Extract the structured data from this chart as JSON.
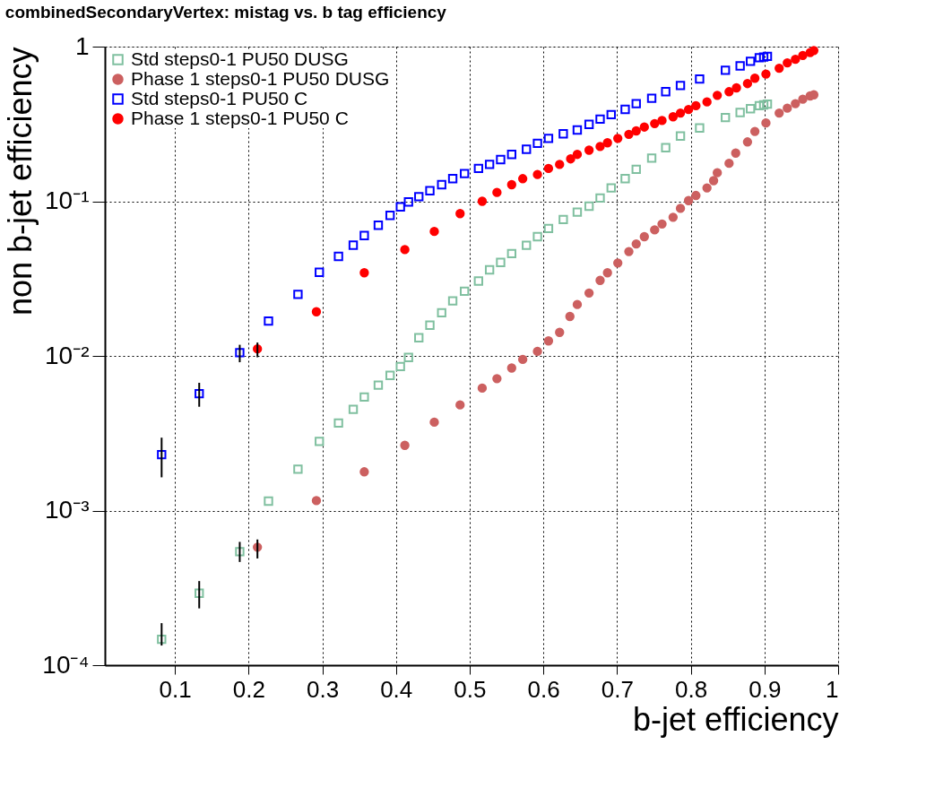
{
  "chart_data": {
    "type": "scatter",
    "title": "combinedSecondaryVertex: mistag vs. b tag efficiency",
    "xlabel": "b-jet efficiency",
    "ylabel": "non b-jet efficiency",
    "xlim": [
      0.005,
      1
    ],
    "ylim": [
      0.0001,
      1
    ],
    "log": "y",
    "grid": true,
    "legend": "top left",
    "xticks": [
      0.1,
      0.2,
      0.3,
      0.4,
      0.5,
      0.6,
      0.7,
      0.8,
      0.9,
      1
    ],
    "yticks": [
      {
        "value": 0.0001,
        "label": "10⁻⁴"
      },
      {
        "value": 0.001,
        "label": "10⁻³"
      },
      {
        "value": 0.01,
        "label": "10⁻²"
      },
      {
        "value": 0.1,
        "label": "10⁻¹"
      },
      1
    ],
    "series": [
      {
        "name": "Std steps0-1 PU50 DUSG",
        "color": "#80c0a0",
        "marker": "square",
        "x": [
          0.082,
          0.133,
          0.188,
          0.227,
          0.267,
          0.296,
          0.322,
          0.342,
          0.357,
          0.376,
          0.392,
          0.406,
          0.417,
          0.431,
          0.446,
          0.462,
          0.477,
          0.493,
          0.512,
          0.527,
          0.542,
          0.557,
          0.577,
          0.592,
          0.607,
          0.627,
          0.646,
          0.662,
          0.677,
          0.692,
          0.711,
          0.726,
          0.747,
          0.766,
          0.786,
          0.812,
          0.847,
          0.867,
          0.881,
          0.893,
          0.899,
          0.904
        ],
        "values": [
          0.000147,
          0.000292,
          0.000542,
          0.00115,
          0.00185,
          0.0028,
          0.00368,
          0.00451,
          0.00542,
          0.00647,
          0.00748,
          0.00853,
          0.00977,
          0.0131,
          0.0158,
          0.019,
          0.0227,
          0.0262,
          0.0305,
          0.036,
          0.0402,
          0.0459,
          0.0519,
          0.059,
          0.0667,
          0.0762,
          0.085,
          0.0929,
          0.105,
          0.122,
          0.14,
          0.161,
          0.19,
          0.222,
          0.264,
          0.298,
          0.348,
          0.375,
          0.397,
          0.415,
          0.42,
          0.425
        ],
        "errors": [
          [
            0.000134,
            0.000187
          ],
          [
            0.000233,
            0.00035
          ],
          [
            0.000465,
            0.000627
          ],
          null,
          null,
          null,
          null,
          null,
          null,
          null,
          null,
          null,
          null,
          null,
          null,
          null,
          null,
          null,
          null,
          null,
          null,
          null,
          null,
          null,
          null,
          null,
          null,
          null,
          null,
          null,
          null,
          null,
          null,
          null,
          null,
          null,
          null,
          null,
          null,
          null,
          null,
          null
        ]
      },
      {
        "name": "Phase 1 steps0-1 PU50 DUSG",
        "color": "#cc6060",
        "marker": "circle",
        "x": [
          0.212,
          0.292,
          0.357,
          0.412,
          0.452,
          0.487,
          0.517,
          0.537,
          0.557,
          0.572,
          0.592,
          0.607,
          0.622,
          0.636,
          0.646,
          0.662,
          0.677,
          0.687,
          0.701,
          0.716,
          0.726,
          0.737,
          0.751,
          0.761,
          0.776,
          0.786,
          0.797,
          0.807,
          0.822,
          0.831,
          0.836,
          0.852,
          0.861,
          0.877,
          0.887,
          0.902,
          0.92,
          0.931,
          0.942,
          0.952,
          0.962,
          0.967
        ],
        "values": [
          0.00058,
          0.00116,
          0.00178,
          0.00264,
          0.00373,
          0.00482,
          0.00619,
          0.00713,
          0.00835,
          0.00949,
          0.0107,
          0.0125,
          0.0142,
          0.018,
          0.0215,
          0.0255,
          0.0308,
          0.0345,
          0.0399,
          0.0473,
          0.053,
          0.059,
          0.0653,
          0.0713,
          0.0788,
          0.09,
          0.101,
          0.109,
          0.122,
          0.136,
          0.153,
          0.176,
          0.205,
          0.242,
          0.283,
          0.321,
          0.372,
          0.4,
          0.428,
          0.457,
          0.48,
          0.488
        ],
        "errors": [
          [
            0.00049,
            0.00065
          ],
          null,
          null,
          null,
          null,
          null,
          null,
          null,
          null,
          null,
          null,
          null,
          null,
          null,
          null,
          null,
          null,
          null,
          null,
          null,
          null,
          null,
          null,
          null,
          null,
          null,
          null,
          null,
          null,
          null,
          null,
          null,
          null,
          null,
          null,
          null,
          null,
          null,
          null,
          null,
          null,
          null
        ]
      },
      {
        "name": "Std steps0-1 PU50 C",
        "color": "#0000ff",
        "marker": "square",
        "x": [
          0.082,
          0.133,
          0.188,
          0.227,
          0.267,
          0.296,
          0.322,
          0.342,
          0.357,
          0.376,
          0.392,
          0.406,
          0.417,
          0.431,
          0.446,
          0.462,
          0.477,
          0.493,
          0.512,
          0.527,
          0.542,
          0.557,
          0.577,
          0.592,
          0.607,
          0.627,
          0.646,
          0.662,
          0.677,
          0.692,
          0.711,
          0.726,
          0.747,
          0.766,
          0.786,
          0.812,
          0.847,
          0.867,
          0.881,
          0.893,
          0.899,
          0.904
        ],
        "values": [
          0.0023,
          0.0057,
          0.0105,
          0.0168,
          0.025,
          0.0347,
          0.044,
          0.052,
          0.06,
          0.07,
          0.081,
          0.092,
          0.099,
          0.107,
          0.117,
          0.128,
          0.14,
          0.151,
          0.163,
          0.173,
          0.186,
          0.201,
          0.217,
          0.237,
          0.255,
          0.273,
          0.289,
          0.314,
          0.34,
          0.363,
          0.393,
          0.428,
          0.463,
          0.511,
          0.56,
          0.617,
          0.703,
          0.751,
          0.803,
          0.847,
          0.857,
          0.865
        ],
        "errors": [
          [
            0.00164,
            0.00296
          ],
          [
            0.00469,
            0.0067
          ],
          [
            0.0091,
            0.0118
          ],
          null,
          null,
          null,
          null,
          null,
          null,
          null,
          null,
          null,
          null,
          null,
          null,
          null,
          null,
          null,
          null,
          null,
          null,
          null,
          null,
          null,
          null,
          null,
          null,
          null,
          null,
          null,
          null,
          null,
          null,
          null,
          null,
          null,
          null,
          null,
          null,
          null,
          null,
          null
        ]
      },
      {
        "name": "Phase 1 steps0-1 PU50 C",
        "color": "#ff0000",
        "marker": "circle",
        "x": [
          0.212,
          0.292,
          0.357,
          0.412,
          0.452,
          0.487,
          0.517,
          0.537,
          0.557,
          0.572,
          0.592,
          0.607,
          0.622,
          0.637,
          0.646,
          0.662,
          0.677,
          0.687,
          0.701,
          0.716,
          0.726,
          0.737,
          0.751,
          0.761,
          0.776,
          0.786,
          0.797,
          0.807,
          0.822,
          0.836,
          0.852,
          0.862,
          0.877,
          0.887,
          0.902,
          0.92,
          0.931,
          0.942,
          0.952,
          0.962,
          0.967
        ],
        "values": [
          0.0111,
          0.0193,
          0.0345,
          0.0487,
          0.0638,
          0.0832,
          0.1,
          0.114,
          0.128,
          0.14,
          0.149,
          0.163,
          0.173,
          0.188,
          0.201,
          0.214,
          0.226,
          0.239,
          0.255,
          0.271,
          0.285,
          0.302,
          0.318,
          0.333,
          0.352,
          0.372,
          0.392,
          0.415,
          0.439,
          0.484,
          0.511,
          0.541,
          0.577,
          0.625,
          0.665,
          0.725,
          0.785,
          0.828,
          0.877,
          0.916,
          0.944
        ],
        "errors": [
          [
            0.0098,
            0.0122
          ],
          null,
          null,
          null,
          null,
          null,
          null,
          null,
          null,
          null,
          null,
          null,
          null,
          null,
          null,
          null,
          null,
          null,
          null,
          null,
          null,
          null,
          null,
          null,
          null,
          null,
          null,
          null,
          null,
          null,
          null,
          null,
          null,
          null,
          null,
          null,
          null,
          null,
          null,
          null,
          null
        ]
      }
    ]
  }
}
